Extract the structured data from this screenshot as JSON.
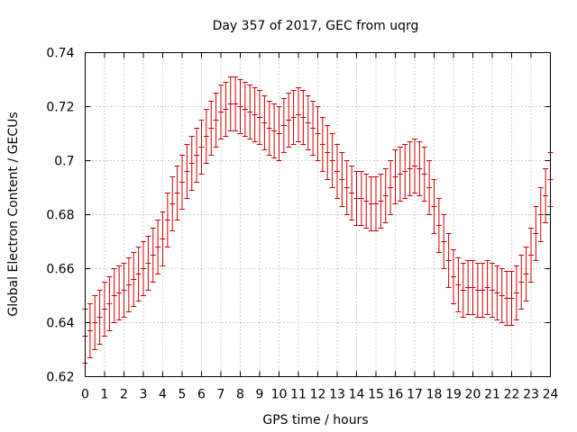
{
  "chart_data": {
    "type": "scatter",
    "title": "Day 357 of 2017, GEC from uqrg",
    "xlabel": "GPS time / hours",
    "ylabel": "Global Electron Content / GECUs",
    "xlim": [
      0,
      24
    ],
    "ylim": [
      0.62,
      0.74
    ],
    "grid": true,
    "x_ticks": [
      "0",
      "1",
      "2",
      "3",
      "4",
      "5",
      "6",
      "7",
      "8",
      "9",
      "10",
      "11",
      "12",
      "13",
      "14",
      "15",
      "16",
      "17",
      "18",
      "19",
      "20",
      "21",
      "22",
      "23",
      "24"
    ],
    "y_ticks": [
      "0.62",
      "0.64",
      "0.66",
      "0.68",
      "0.7",
      "0.72",
      "0.74"
    ],
    "series": [
      {
        "color": "#cc0000",
        "x": [
          0,
          0.25,
          0.5,
          0.75,
          1,
          1.25,
          1.5,
          1.75,
          2,
          2.25,
          2.5,
          2.75,
          3,
          3.25,
          3.5,
          3.75,
          4,
          4.25,
          4.5,
          4.75,
          5,
          5.25,
          5.5,
          5.75,
          6,
          6.25,
          6.5,
          6.75,
          7,
          7.25,
          7.5,
          7.75,
          8,
          8.25,
          8.5,
          8.75,
          9,
          9.25,
          9.5,
          9.75,
          10,
          10.25,
          10.5,
          10.75,
          11,
          11.25,
          11.5,
          11.75,
          12,
          12.25,
          12.5,
          12.75,
          13,
          13.25,
          13.5,
          13.75,
          14,
          14.25,
          14.5,
          14.75,
          15,
          15.25,
          15.5,
          15.75,
          16,
          16.25,
          16.5,
          16.75,
          17,
          17.25,
          17.5,
          17.75,
          18,
          18.25,
          18.5,
          18.75,
          19,
          19.25,
          19.5,
          19.75,
          20,
          20.25,
          20.5,
          20.75,
          21,
          21.25,
          21.5,
          21.75,
          22,
          22.25,
          22.5,
          22.75,
          23,
          23.25,
          23.5,
          23.75,
          24
        ],
        "y": [
          0.635,
          0.637,
          0.64,
          0.642,
          0.645,
          0.647,
          0.65,
          0.651,
          0.652,
          0.654,
          0.656,
          0.658,
          0.66,
          0.662,
          0.665,
          0.668,
          0.671,
          0.678,
          0.684,
          0.688,
          0.692,
          0.696,
          0.699,
          0.702,
          0.705,
          0.709,
          0.712,
          0.715,
          0.718,
          0.719,
          0.721,
          0.721,
          0.72,
          0.719,
          0.718,
          0.717,
          0.716,
          0.714,
          0.712,
          0.711,
          0.71,
          0.713,
          0.715,
          0.716,
          0.717,
          0.716,
          0.714,
          0.712,
          0.71,
          0.706,
          0.703,
          0.7,
          0.696,
          0.693,
          0.69,
          0.688,
          0.686,
          0.686,
          0.685,
          0.684,
          0.684,
          0.685,
          0.687,
          0.69,
          0.694,
          0.695,
          0.696,
          0.697,
          0.698,
          0.697,
          0.695,
          0.69,
          0.683,
          0.676,
          0.67,
          0.663,
          0.657,
          0.654,
          0.652,
          0.653,
          0.653,
          0.652,
          0.652,
          0.653,
          0.652,
          0.651,
          0.65,
          0.649,
          0.649,
          0.651,
          0.655,
          0.658,
          0.665,
          0.673,
          0.68,
          0.687,
          0.693
        ],
        "error": 0.01
      }
    ]
  }
}
